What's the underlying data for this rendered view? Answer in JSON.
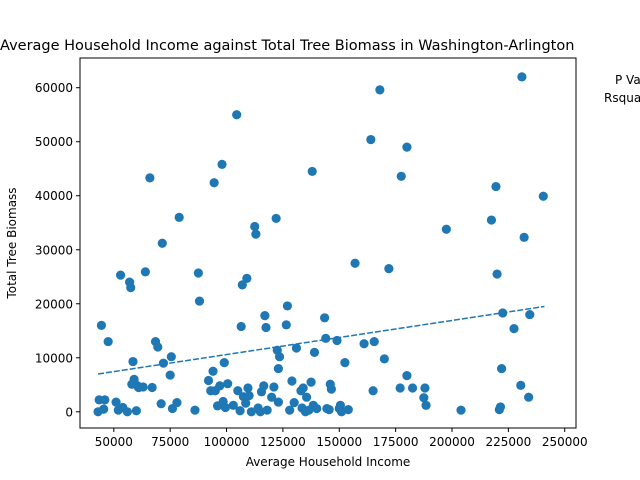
{
  "chart_data": {
    "type": "scatter",
    "title": "Average Household Income against Total Tree Biomass in Washington-Arlington",
    "xlabel": "Average Household Income",
    "ylabel": "Total Tree Biomass",
    "xlim": [
      35000,
      255000
    ],
    "ylim": [
      -3000,
      65500
    ],
    "x_ticks": [
      50000,
      75000,
      100000,
      125000,
      150000,
      175000,
      200000,
      225000,
      250000
    ],
    "y_ticks": [
      0,
      10000,
      20000,
      30000,
      40000,
      50000,
      60000
    ],
    "grid": false,
    "color": "#1f77b4",
    "annotations": [
      "P Value",
      "Rsquared"
    ],
    "trendline": {
      "x": [
        43000,
        241000
      ],
      "y": [
        7000,
        19500
      ]
    },
    "points": [
      [
        43000,
        0
      ],
      [
        43500,
        2200
      ],
      [
        44500,
        16000
      ],
      [
        45500,
        500
      ],
      [
        46000,
        2200
      ],
      [
        47500,
        13000
      ],
      [
        51000,
        1800
      ],
      [
        52000,
        300
      ],
      [
        53000,
        25300
      ],
      [
        54000,
        800
      ],
      [
        56000,
        0
      ],
      [
        57000,
        24000
      ],
      [
        57500,
        23000
      ],
      [
        58000,
        5100
      ],
      [
        58500,
        9300
      ],
      [
        59000,
        6000
      ],
      [
        60000,
        200
      ],
      [
        60500,
        4800
      ],
      [
        61000,
        4500
      ],
      [
        63000,
        4600
      ],
      [
        64000,
        25900
      ],
      [
        66000,
        43300
      ],
      [
        67000,
        4500
      ],
      [
        68500,
        13000
      ],
      [
        69500,
        12000
      ],
      [
        71000,
        1500
      ],
      [
        71500,
        31200
      ],
      [
        72000,
        9000
      ],
      [
        75000,
        6800
      ],
      [
        75500,
        10200
      ],
      [
        76000,
        600
      ],
      [
        78000,
        1700
      ],
      [
        79000,
        36000
      ],
      [
        86000,
        300
      ],
      [
        87500,
        25700
      ],
      [
        88000,
        20500
      ],
      [
        92000,
        5800
      ],
      [
        93000,
        3900
      ],
      [
        94000,
        7500
      ],
      [
        94500,
        42400
      ],
      [
        95000,
        3900
      ],
      [
        96000,
        1100
      ],
      [
        97000,
        4800
      ],
      [
        98000,
        45800
      ],
      [
        98500,
        1900
      ],
      [
        99000,
        9100
      ],
      [
        99500,
        800
      ],
      [
        100500,
        5200
      ],
      [
        103000,
        1200
      ],
      [
        104500,
        55000
      ],
      [
        105000,
        3900
      ],
      [
        106000,
        200
      ],
      [
        106500,
        15800
      ],
      [
        107000,
        23500
      ],
      [
        107500,
        2800
      ],
      [
        108500,
        1600
      ],
      [
        109000,
        24700
      ],
      [
        109500,
        4400
      ],
      [
        110000,
        3000
      ],
      [
        111000,
        0
      ],
      [
        112500,
        34300
      ],
      [
        113000,
        32900
      ],
      [
        114000,
        700
      ],
      [
        115000,
        0
      ],
      [
        115500,
        3700
      ],
      [
        116500,
        4800
      ],
      [
        117000,
        17800
      ],
      [
        117500,
        15600
      ],
      [
        118000,
        300
      ],
      [
        120000,
        2700
      ],
      [
        121000,
        4600
      ],
      [
        122000,
        35800
      ],
      [
        122500,
        11400
      ],
      [
        123000,
        8000
      ],
      [
        123500,
        10200
      ],
      [
        123000,
        1800
      ],
      [
        126500,
        16100
      ],
      [
        127000,
        19600
      ],
      [
        128000,
        300
      ],
      [
        129000,
        5700
      ],
      [
        130000,
        1700
      ],
      [
        131000,
        11800
      ],
      [
        133000,
        3900
      ],
      [
        133500,
        700
      ],
      [
        134000,
        4400
      ],
      [
        135000,
        0
      ],
      [
        135500,
        2700
      ],
      [
        136500,
        300
      ],
      [
        137500,
        5500
      ],
      [
        138000,
        44500
      ],
      [
        138500,
        1200
      ],
      [
        139000,
        11000
      ],
      [
        140000,
        600
      ],
      [
        143500,
        17400
      ],
      [
        144000,
        13600
      ],
      [
        144500,
        600
      ],
      [
        145500,
        400
      ],
      [
        146000,
        5100
      ],
      [
        146500,
        4200
      ],
      [
        149000,
        13200
      ],
      [
        150000,
        600
      ],
      [
        150500,
        1200
      ],
      [
        151000,
        0
      ],
      [
        152500,
        9100
      ],
      [
        154000,
        400
      ],
      [
        157000,
        27500
      ],
      [
        161000,
        12600
      ],
      [
        164000,
        50400
      ],
      [
        165000,
        3900
      ],
      [
        165500,
        13000
      ],
      [
        168000,
        59600
      ],
      [
        170000,
        9800
      ],
      [
        172000,
        26500
      ],
      [
        177500,
        43600
      ],
      [
        177000,
        4400
      ],
      [
        180000,
        49000
      ],
      [
        180000,
        6700
      ],
      [
        182500,
        4400
      ],
      [
        187500,
        2600
      ],
      [
        188000,
        4400
      ],
      [
        188500,
        1200
      ],
      [
        197500,
        33800
      ],
      [
        204000,
        300
      ],
      [
        217500,
        35500
      ],
      [
        219500,
        41700
      ],
      [
        220000,
        25500
      ],
      [
        221000,
        400
      ],
      [
        221500,
        900
      ],
      [
        222000,
        8000
      ],
      [
        222500,
        18300
      ],
      [
        227500,
        15400
      ],
      [
        230500,
        4900
      ],
      [
        231000,
        62000
      ],
      [
        232000,
        32300
      ],
      [
        234000,
        2700
      ],
      [
        234500,
        18000
      ],
      [
        240500,
        39900
      ]
    ]
  }
}
